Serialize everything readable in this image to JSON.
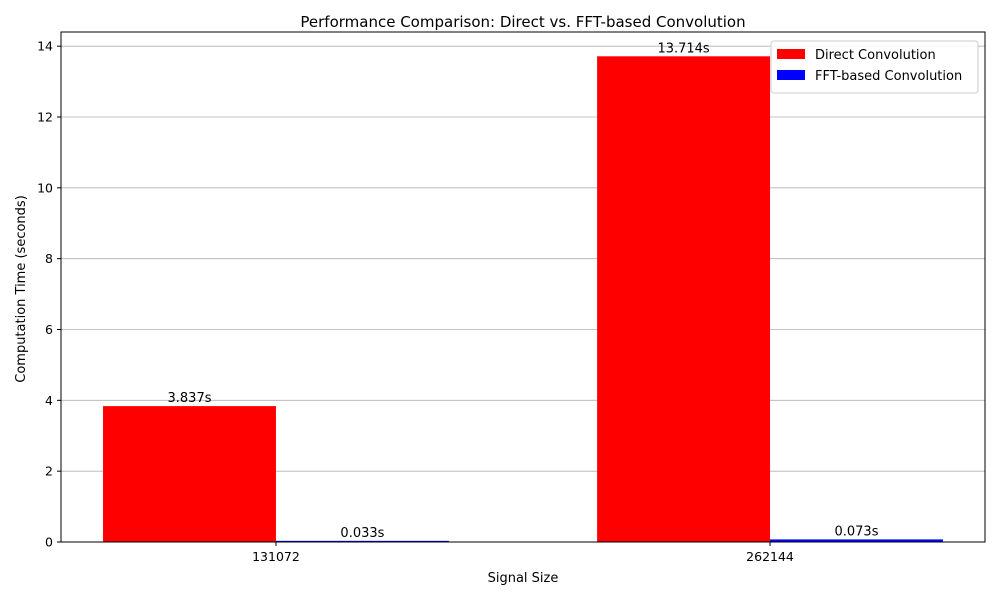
{
  "chart_data": {
    "type": "bar",
    "title": "Performance Comparison: Direct vs. FFT-based Convolution",
    "xlabel": "Signal Size",
    "ylabel": "Computation Time (seconds)",
    "categories": [
      "131072",
      "262144"
    ],
    "series": [
      {
        "name": "Direct Convolution",
        "color": "#ff0000",
        "values": [
          3.837,
          13.714
        ],
        "labels": [
          "3.837s",
          "13.714s"
        ]
      },
      {
        "name": "FFT-based Convolution",
        "color": "#0000ff",
        "values": [
          0.033,
          0.073
        ],
        "labels": [
          "0.033s",
          "0.073s"
        ]
      }
    ],
    "ylim": [
      0,
      14.4
    ],
    "yticks": [
      0,
      2,
      4,
      6,
      8,
      10,
      12,
      14
    ],
    "grid": "y",
    "legend": "top-right"
  }
}
